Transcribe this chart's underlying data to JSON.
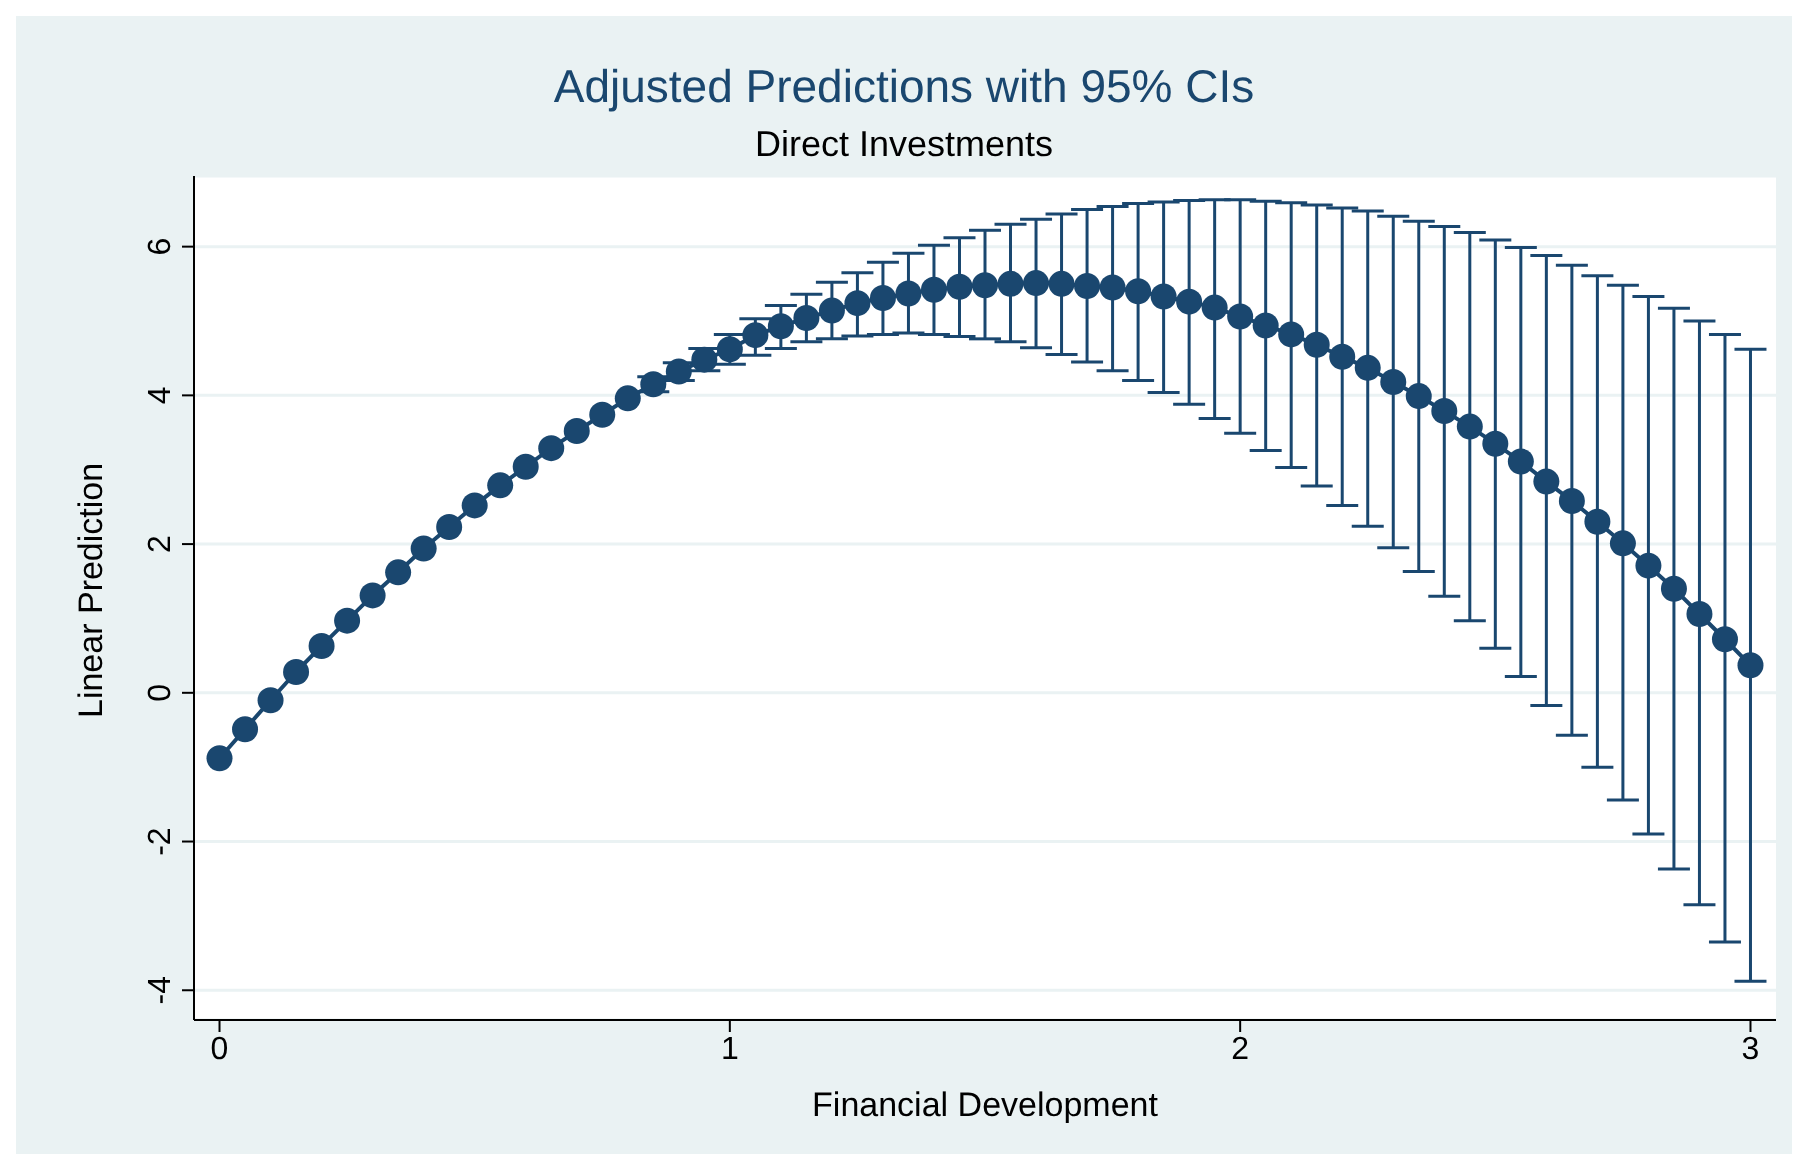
{
  "chart_data": {
    "type": "line",
    "title": "Adjusted Predictions with 95% CIs",
    "subtitle": "Direct Investments",
    "xlabel": "Financial Development",
    "ylabel": "Linear Prediction",
    "x": [
      0,
      0.05,
      0.1,
      0.15,
      0.2,
      0.25,
      0.3,
      0.35,
      0.4,
      0.45,
      0.5,
      0.55,
      0.6,
      0.65,
      0.7,
      0.75,
      0.8,
      0.85,
      0.9,
      0.95,
      1,
      1.05,
      1.1,
      1.15,
      1.2,
      1.25,
      1.3,
      1.35,
      1.4,
      1.45,
      1.5,
      1.55,
      1.6,
      1.65,
      1.7,
      1.75,
      1.8,
      1.85,
      1.9,
      1.95,
      2,
      2.05,
      2.1,
      2.15,
      2.2,
      2.25,
      2.3,
      2.35,
      2.4,
      2.45,
      2.5,
      2.55,
      2.6,
      2.65,
      2.7,
      2.75,
      2.8,
      2.85,
      2.9,
      2.95,
      3
    ],
    "series": [
      {
        "color": "#1a476f",
        "values": [
          -0.88,
          -0.49,
          -0.1,
          0.28,
          0.63,
          0.97,
          1.31,
          1.62,
          1.94,
          2.23,
          2.52,
          2.79,
          3.04,
          3.29,
          3.52,
          3.74,
          3.96,
          4.15,
          4.32,
          4.48,
          4.62,
          4.81,
          4.93,
          5.04,
          5.14,
          5.24,
          5.31,
          5.37,
          5.42,
          5.46,
          5.48,
          5.5,
          5.51,
          5.5,
          5.47,
          5.45,
          5.4,
          5.33,
          5.26,
          5.18,
          5.06,
          4.94,
          4.82,
          4.68,
          4.52,
          4.37,
          4.18,
          3.99,
          3.79,
          3.58,
          3.35,
          3.11,
          2.84,
          2.58,
          2.3,
          2.01,
          1.71,
          1.4,
          1.06,
          0.72,
          0.37
        ],
        "errors": [
          null,
          null,
          null,
          null,
          null,
          null,
          null,
          null,
          null,
          null,
          null,
          null,
          null,
          null,
          null,
          null,
          null,
          0.1,
          0.12,
          0.15,
          0.2,
          [
            4.54,
            5.03
          ],
          [
            4.63,
            5.21
          ],
          [
            4.72,
            5.36
          ],
          [
            4.76,
            5.52
          ],
          [
            4.8,
            5.65
          ],
          [
            4.82,
            5.79
          ],
          [
            4.84,
            5.91
          ],
          [
            4.82,
            6.02
          ],
          [
            4.79,
            6.12
          ],
          [
            4.76,
            6.22
          ],
          [
            4.72,
            6.3
          ],
          [
            4.64,
            6.37
          ],
          [
            4.55,
            6.44
          ],
          [
            4.45,
            6.5
          ],
          [
            4.33,
            6.54
          ],
          [
            4.2,
            6.58
          ],
          [
            4.04,
            6.6
          ],
          [
            3.88,
            6.62
          ],
          [
            3.69,
            6.63
          ],
          [
            3.49,
            6.63
          ],
          [
            3.26,
            6.61
          ],
          [
            3.03,
            6.59
          ],
          [
            2.78,
            6.56
          ],
          [
            2.52,
            6.52
          ],
          [
            2.24,
            6.48
          ],
          [
            1.95,
            6.41
          ],
          [
            1.63,
            6.34
          ],
          [
            1.3,
            6.27
          ],
          [
            0.97,
            6.19
          ],
          [
            0.6,
            6.09
          ],
          [
            0.22,
            5.99
          ],
          [
            -0.17,
            5.88
          ],
          [
            -0.57,
            5.75
          ],
          [
            -1.0,
            5.61
          ],
          [
            -1.44,
            5.48
          ],
          [
            -1.9,
            5.33
          ],
          [
            -2.37,
            5.17
          ],
          [
            -2.85,
            5.0
          ],
          [
            -3.35,
            4.82
          ],
          [
            -3.88,
            4.62
          ]
        ]
      }
    ],
    "xlim": [
      -0.05,
      3.05
    ],
    "xticks": [
      0,
      1,
      2,
      3
    ],
    "ylim": [
      -4.4,
      6.95
    ],
    "yticks": [
      -4,
      -2,
      0,
      2,
      4,
      6
    ],
    "grid": "y",
    "marker": "circle",
    "line_style": "solid"
  }
}
